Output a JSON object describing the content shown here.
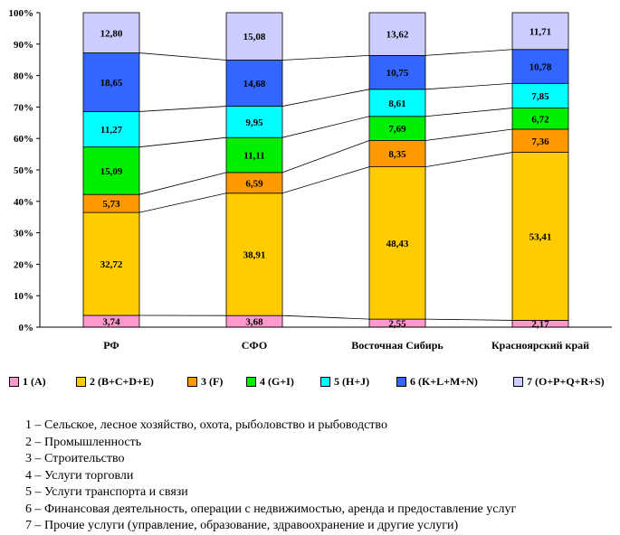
{
  "chart_data": {
    "type": "bar",
    "stacked": true,
    "percent": true,
    "categories": [
      "РФ",
      "СФО",
      "Восточная Сибирь",
      "Красноярский край"
    ],
    "series": [
      {
        "name": "1 (A)",
        "color": "#ff99cc",
        "values": [
          3.74,
          3.68,
          2.55,
          2.17
        ],
        "labels": [
          "3,74",
          "3,68",
          "2,55",
          "2,17"
        ]
      },
      {
        "name": "2 (B+C+D+E)",
        "color": "#ffcc00",
        "values": [
          32.72,
          38.91,
          48.43,
          53.41
        ],
        "labels": [
          "32,72",
          "38,91",
          "48,43",
          "53,41"
        ]
      },
      {
        "name": "3 (F)",
        "color": "#ff9900",
        "values": [
          5.73,
          6.59,
          8.35,
          7.36
        ],
        "labels": [
          "5,73",
          "6,59",
          "8,35",
          "7,36"
        ]
      },
      {
        "name": "4 (G+I)",
        "color": "#00ee00",
        "values": [
          15.09,
          11.11,
          7.69,
          6.72
        ],
        "labels": [
          "15,09",
          "11,11",
          "7,69",
          "6,72"
        ]
      },
      {
        "name": "5 (H+J)",
        "color": "#00ffff",
        "values": [
          11.27,
          9.95,
          8.61,
          7.85
        ],
        "labels": [
          "11,27",
          "9,95",
          "8,61",
          "7,85"
        ]
      },
      {
        "name": "6 (K+L+M+N)",
        "color": "#3366ff",
        "values": [
          18.65,
          14.68,
          10.75,
          10.78
        ],
        "labels": [
          "18,65",
          "14,68",
          "10,75",
          "10,78"
        ]
      },
      {
        "name": "7 (O+P+Q+R+S)",
        "color": "#ccccff",
        "values": [
          12.8,
          15.08,
          13.62,
          11.71
        ],
        "labels": [
          "12,80",
          "15,08",
          "13,62",
          "11,71"
        ]
      }
    ],
    "yticks": [
      "0%",
      "10%",
      "20%",
      "30%",
      "40%",
      "50%",
      "60%",
      "70%",
      "80%",
      "90%",
      "100%"
    ],
    "ylim": [
      0,
      100
    ],
    "series_lines": true,
    "legend_position": "bottom"
  },
  "notes": [
    "1 – Сельское, лесное хозяйство, охота, рыболовство и рыбоводство",
    "2 – Промышленность",
    "3 – Строительство",
    "4 – Услуги торговли",
    "5 – Услуги транспорта и связи",
    "6 – Финансовая деятельность, операции с недвижимостью, аренда и предоставление услуг",
    "7 – Прочие услуги (управление, образование, здравоохранение и другие услуги)"
  ]
}
